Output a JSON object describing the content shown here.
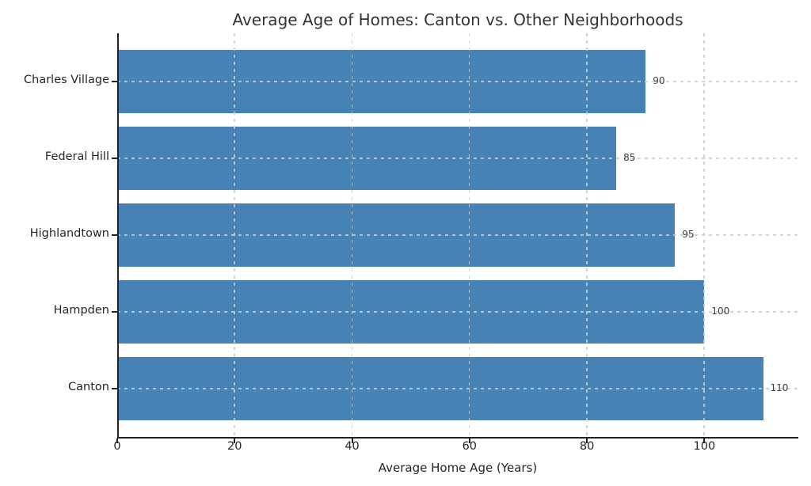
{
  "chart_data": {
    "type": "bar",
    "orientation": "horizontal",
    "title": "Average Age of Homes: Canton vs. Other Neighborhoods",
    "xlabel": "Average Home Age (Years)",
    "categories": [
      "Charles Village",
      "Federal Hill",
      "Highlandtown",
      "Hampden",
      "Canton"
    ],
    "values": [
      90,
      85,
      95,
      100,
      110
    ],
    "value_labels": [
      "90",
      "85",
      "95",
      "100",
      "110"
    ],
    "xlim": [
      0,
      116
    ],
    "xticks": [
      0,
      20,
      40,
      60,
      80,
      100
    ],
    "grid_style": "dashed",
    "legend": "none",
    "colors": {
      "bar": "#4682B4",
      "grid": "#cdcdcd",
      "spine": "#222222",
      "text": "#262626",
      "value_label": "#3d3d3d",
      "background": "#ffffff"
    }
  }
}
